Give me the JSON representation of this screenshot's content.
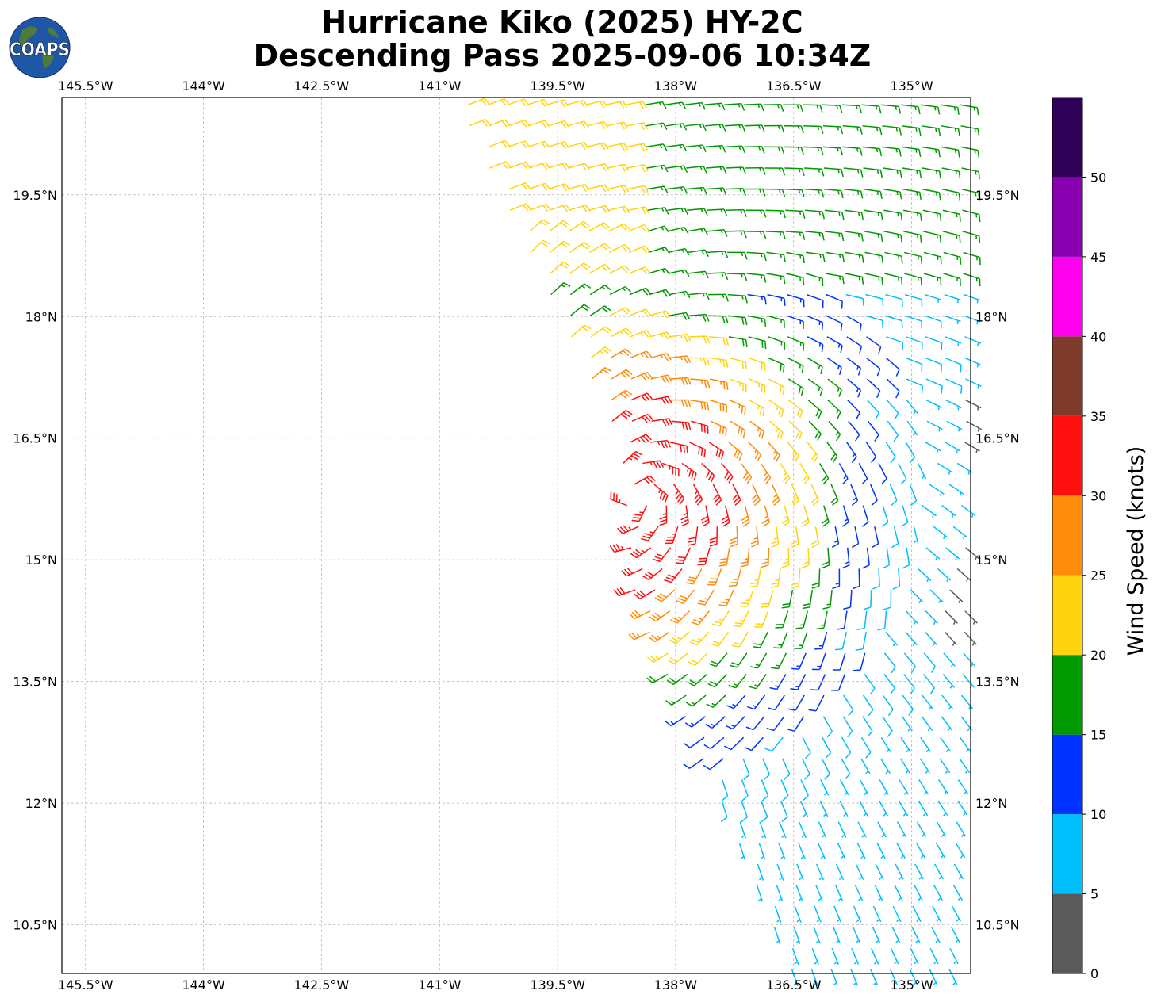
{
  "header": {
    "title_line1": "Hurricane Kiko (2025) HY-2C",
    "title_line2": "Descending Pass 2025-09-06 10:34Z"
  },
  "logo": {
    "text": "COAPS",
    "ocean_color": "#1e56a8",
    "land_color": "#4e7a3a"
  },
  "map": {
    "lon_range": [
      -145.8,
      -134.25
    ],
    "lat_range": [
      9.9,
      20.7
    ],
    "lon_ticks": [
      {
        "value": -145.5,
        "label": "145.5°W"
      },
      {
        "value": -144.0,
        "label": "144°W"
      },
      {
        "value": -142.5,
        "label": "142.5°W"
      },
      {
        "value": -141.0,
        "label": "141°W"
      },
      {
        "value": -139.5,
        "label": "139.5°W"
      },
      {
        "value": -138.0,
        "label": "138°W"
      },
      {
        "value": -136.5,
        "label": "136.5°W"
      },
      {
        "value": -135.0,
        "label": "135°W"
      }
    ],
    "lat_ticks": [
      {
        "value": 19.5,
        "label": "19.5°N"
      },
      {
        "value": 18.0,
        "label": "18°N"
      },
      {
        "value": 16.5,
        "label": "16.5°N"
      },
      {
        "value": 15.0,
        "label": "15°N"
      },
      {
        "value": 13.5,
        "label": "13.5°N"
      },
      {
        "value": 12.0,
        "label": "12°N"
      },
      {
        "value": 10.5,
        "label": "10.5°N"
      }
    ],
    "gridlines": true,
    "storm_center": {
      "lon": -138.5,
      "lat": 15.8
    },
    "swath_edge_lon": [
      [
        20.7,
        -140.8
      ],
      [
        16.5,
        -138.7
      ],
      [
        14.5,
        -138.5
      ],
      [
        12.0,
        -137.4
      ],
      [
        9.9,
        -136.5
      ]
    ]
  },
  "colorbar": {
    "label": "Wind Speed (knots)",
    "range": [
      0,
      55
    ],
    "ticks": [
      0,
      5,
      10,
      15,
      20,
      25,
      30,
      35,
      40,
      45,
      50
    ],
    "bins": [
      {
        "min": 0,
        "max": 5,
        "color": "#5a5a5a"
      },
      {
        "min": 5,
        "max": 10,
        "color": "#00bfff"
      },
      {
        "min": 10,
        "max": 15,
        "color": "#0033ff"
      },
      {
        "min": 15,
        "max": 20,
        "color": "#009900"
      },
      {
        "min": 20,
        "max": 25,
        "color": "#ffd40f"
      },
      {
        "min": 25,
        "max": 30,
        "color": "#ff8c0a"
      },
      {
        "min": 30,
        "max": 35,
        "color": "#ff1010"
      },
      {
        "min": 35,
        "max": 40,
        "color": "#7e3b2b"
      },
      {
        "min": 40,
        "max": 45,
        "color": "#ff00ee"
      },
      {
        "min": 45,
        "max": 50,
        "color": "#8800b0"
      },
      {
        "min": 50,
        "max": 55,
        "color": "#2e0058"
      }
    ]
  }
}
